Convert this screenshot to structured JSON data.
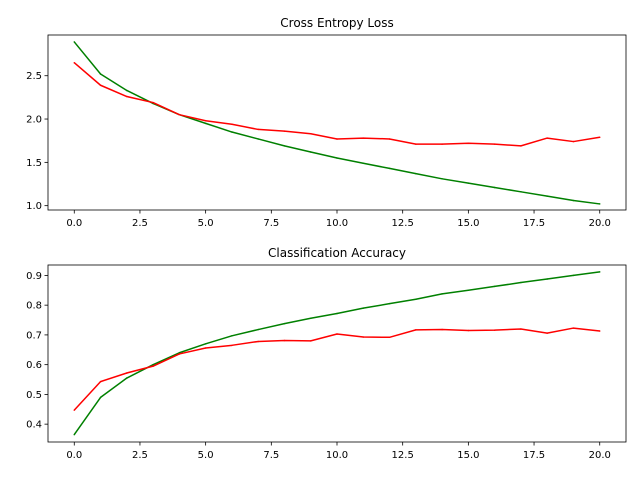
{
  "chart_data": [
    {
      "type": "line",
      "title": "Cross Entropy Loss",
      "xlabel": "",
      "ylabel": "",
      "xlim": [
        -1.0,
        21.0
      ],
      "ylim": [
        0.95,
        2.97
      ],
      "xticks": [
        0.0,
        2.5,
        5.0,
        7.5,
        10.0,
        12.5,
        15.0,
        17.5,
        20.0
      ],
      "xtick_labels": [
        "0.0",
        "2.5",
        "5.0",
        "7.5",
        "10.0",
        "12.5",
        "15.0",
        "17.5",
        "20.0"
      ],
      "yticks": [
        1.0,
        1.5,
        2.0,
        2.5
      ],
      "ytick_labels": [
        "1.0",
        "1.5",
        "2.0",
        "2.5"
      ],
      "grid": false,
      "x": [
        0,
        1,
        2,
        3,
        4,
        5,
        6,
        7,
        8,
        9,
        10,
        11,
        12,
        13,
        14,
        15,
        16,
        17,
        18,
        19,
        20
      ],
      "series": [
        {
          "color": "#008000",
          "values": [
            2.89,
            2.52,
            2.33,
            2.18,
            2.05,
            1.95,
            1.85,
            1.77,
            1.69,
            1.62,
            1.55,
            1.49,
            1.43,
            1.37,
            1.31,
            1.26,
            1.21,
            1.16,
            1.11,
            1.06,
            1.02
          ]
        },
        {
          "color": "#ff0000",
          "values": [
            2.65,
            2.39,
            2.26,
            2.19,
            2.05,
            1.98,
            1.94,
            1.88,
            1.86,
            1.83,
            1.77,
            1.78,
            1.77,
            1.71,
            1.71,
            1.72,
            1.71,
            1.69,
            1.78,
            1.74,
            1.79
          ]
        }
      ]
    },
    {
      "type": "line",
      "title": "Classification Accuracy",
      "xlabel": "",
      "ylabel": "",
      "xlim": [
        -1.0,
        21.0
      ],
      "ylim": [
        0.34,
        0.935
      ],
      "xticks": [
        0.0,
        2.5,
        5.0,
        7.5,
        10.0,
        12.5,
        15.0,
        17.5,
        20.0
      ],
      "xtick_labels": [
        "0.0",
        "2.5",
        "5.0",
        "7.5",
        "10.0",
        "12.5",
        "15.0",
        "17.5",
        "20.0"
      ],
      "yticks": [
        0.4,
        0.5,
        0.6,
        0.7,
        0.8,
        0.9
      ],
      "ytick_labels": [
        "0.4",
        "0.5",
        "0.6",
        "0.7",
        "0.8",
        "0.9"
      ],
      "grid": false,
      "x": [
        0,
        1,
        2,
        3,
        4,
        5,
        6,
        7,
        8,
        9,
        10,
        11,
        12,
        13,
        14,
        15,
        16,
        17,
        18,
        19,
        20
      ],
      "series": [
        {
          "color": "#008000",
          "values": [
            0.365,
            0.49,
            0.555,
            0.6,
            0.64,
            0.67,
            0.697,
            0.718,
            0.738,
            0.756,
            0.772,
            0.79,
            0.805,
            0.82,
            0.838,
            0.85,
            0.863,
            0.876,
            0.888,
            0.9,
            0.912
          ]
        },
        {
          "color": "#ff0000",
          "values": [
            0.447,
            0.543,
            0.572,
            0.595,
            0.636,
            0.656,
            0.665,
            0.678,
            0.681,
            0.68,
            0.703,
            0.693,
            0.692,
            0.717,
            0.718,
            0.715,
            0.716,
            0.72,
            0.706,
            0.723,
            0.713
          ]
        }
      ]
    }
  ]
}
